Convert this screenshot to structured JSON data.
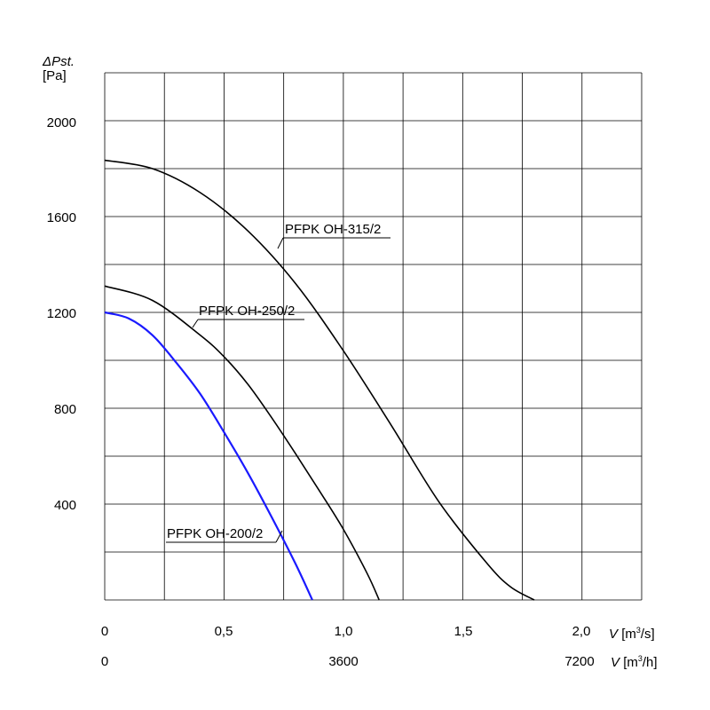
{
  "chart_data": {
    "type": "line",
    "y_axis": {
      "symbol": "ΔPst.",
      "unit": "[Pa]",
      "range": [
        0,
        2200
      ],
      "ticks": [
        "400",
        "800",
        "1200",
        "1600",
        "2000"
      ]
    },
    "x_axis": {
      "primary": {
        "symbol": "V",
        "unit_prefix": "[m",
        "unit_exp": "3",
        "unit_suffix": "/s]",
        "range": [
          0,
          2.25
        ],
        "ticks": [
          "0",
          "0,5",
          "1,0",
          "1,5",
          "2,0"
        ]
      },
      "secondary": {
        "symbol": "V",
        "unit_prefix": "[m",
        "unit_exp": "3",
        "unit_suffix": "/h]",
        "ticks": [
          "0",
          "3600",
          "7200"
        ]
      }
    },
    "grid": true,
    "colors": {
      "grid": "#000000",
      "blue": "#1a1aff",
      "black": "#000000"
    },
    "series": [
      {
        "name": "PFPK OH-315/2",
        "color": "#000000",
        "x": [
          0,
          0.2,
          0.4,
          0.6,
          0.8,
          1.0,
          1.2,
          1.4,
          1.6,
          1.7,
          1.8
        ],
        "y": [
          1835,
          1800,
          1700,
          1540,
          1320,
          1040,
          730,
          410,
          155,
          55,
          0
        ]
      },
      {
        "name": "PFPK OH-250/2",
        "color": "#000000",
        "x": [
          0,
          0.2,
          0.4,
          0.5,
          0.6,
          0.7,
          0.8,
          0.9,
          1.0,
          1.1,
          1.15
        ],
        "y": [
          1310,
          1250,
          1105,
          1015,
          900,
          760,
          610,
          455,
          295,
          110,
          0
        ]
      },
      {
        "name": "PFPK OH-200/2",
        "color": "#1a1aff",
        "x": [
          0,
          0.1,
          0.2,
          0.3,
          0.4,
          0.5,
          0.6,
          0.7,
          0.8,
          0.87
        ],
        "y": [
          1200,
          1175,
          1105,
          990,
          860,
          700,
          530,
          345,
          150,
          0
        ]
      }
    ]
  }
}
